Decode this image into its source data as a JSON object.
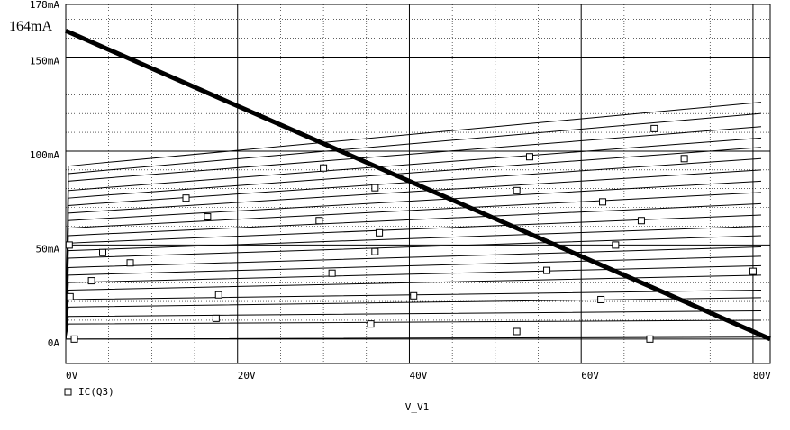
{
  "chart_data": {
    "type": "line",
    "title": "",
    "xlabel": "V_V1",
    "ylabel": "",
    "xlim": [
      0,
      82
    ],
    "ylim": [
      -13,
      178
    ],
    "grid": true,
    "x_ticks": [
      "0V",
      "20V",
      "40V",
      "60V",
      "80V"
    ],
    "x_tick_values": [
      0,
      20,
      40,
      60,
      80
    ],
    "y_ticks": [
      "0A",
      "50mA",
      "100mA",
      "150mA",
      "178mA"
    ],
    "y_tick_values": [
      0,
      50,
      100,
      150,
      178
    ],
    "annotation": "164mA",
    "legend": {
      "entries": [
        "IC(Q3)"
      ],
      "placement": "bottom-left",
      "marker": "square"
    },
    "load_line": {
      "x": [
        0,
        82
      ],
      "y": [
        164,
        0
      ]
    },
    "series": [
      {
        "name": "IC(Q3)",
        "x": [
          0,
          82
        ],
        "y": [
          0,
          1
        ]
      },
      {
        "x": [
          0,
          82
        ],
        "y": [
          8,
          10
        ]
      },
      {
        "x": [
          0,
          82
        ],
        "y": [
          12,
          15
        ]
      },
      {
        "x": [
          0,
          82
        ],
        "y": [
          17,
          22
        ]
      },
      {
        "x": [
          0,
          82
        ],
        "y": [
          21,
          26
        ]
      },
      {
        "x": [
          0,
          82
        ],
        "y": [
          26,
          34
        ]
      },
      {
        "x": [
          0,
          82
        ],
        "y": [
          30,
          39
        ]
      },
      {
        "x": [
          0,
          82
        ],
        "y": [
          34,
          44
        ]
      },
      {
        "x": [
          0,
          82
        ],
        "y": [
          38,
          49
        ]
      },
      {
        "x": [
          0,
          82
        ],
        "y": [
          43,
          55
        ]
      },
      {
        "x": [
          0,
          82
        ],
        "y": [
          47,
          60
        ]
      },
      {
        "x": [
          0,
          82
        ],
        "y": [
          51,
          66
        ]
      },
      {
        "x": [
          0,
          82
        ],
        "y": [
          55,
          72
        ]
      },
      {
        "x": [
          0,
          82
        ],
        "y": [
          59,
          78
        ]
      },
      {
        "x": [
          0,
          82
        ],
        "y": [
          63,
          84
        ]
      },
      {
        "x": [
          0,
          82
        ],
        "y": [
          67,
          90
        ]
      },
      {
        "x": [
          0,
          82
        ],
        "y": [
          71,
          96
        ]
      },
      {
        "x": [
          0,
          82
        ],
        "y": [
          75,
          102
        ]
      },
      {
        "x": [
          0,
          82
        ],
        "y": [
          79,
          107
        ]
      },
      {
        "x": [
          0,
          82
        ],
        "y": [
          84,
          113
        ]
      },
      {
        "x": [
          0,
          82
        ],
        "y": [
          88,
          120
        ]
      },
      {
        "x": [
          0,
          82
        ],
        "y": [
          92,
          126
        ]
      }
    ],
    "markers": [
      {
        "x": 1,
        "y": 0
      },
      {
        "x": 35.5,
        "y": 8
      },
      {
        "x": 52.5,
        "y": 4
      },
      {
        "x": 68,
        "y": 0
      },
      {
        "x": 17.5,
        "y": 11
      },
      {
        "x": 0.5,
        "y": 22.5
      },
      {
        "x": 17.8,
        "y": 23.5
      },
      {
        "x": 40.5,
        "y": 23
      },
      {
        "x": 62.3,
        "y": 21
      },
      {
        "x": 3,
        "y": 31
      },
      {
        "x": 31,
        "y": 35
      },
      {
        "x": 56,
        "y": 36.5
      },
      {
        "x": 80,
        "y": 36
      },
      {
        "x": 7.5,
        "y": 40.5
      },
      {
        "x": 4.3,
        "y": 46
      },
      {
        "x": 36,
        "y": 46.5
      },
      {
        "x": 0.4,
        "y": 50
      },
      {
        "x": 64,
        "y": 50
      },
      {
        "x": 36.5,
        "y": 56.5
      },
      {
        "x": 29.5,
        "y": 63
      },
      {
        "x": 67,
        "y": 63
      },
      {
        "x": 16.5,
        "y": 65
      },
      {
        "x": 62.5,
        "y": 73
      },
      {
        "x": 14,
        "y": 75
      },
      {
        "x": 52.5,
        "y": 79
      },
      {
        "x": 36,
        "y": 80.5
      },
      {
        "x": 30,
        "y": 91
      },
      {
        "x": 72,
        "y": 96
      },
      {
        "x": 54,
        "y": 97
      },
      {
        "x": 68.5,
        "y": 112
      }
    ]
  }
}
